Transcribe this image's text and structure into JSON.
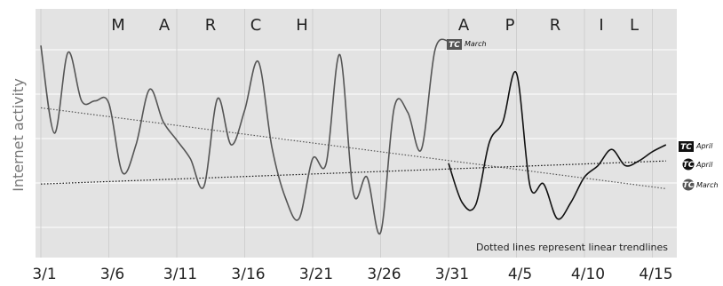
{
  "chart_data": {
    "type": "line",
    "title": "",
    "xlabel": "",
    "ylabel": "Internet activity",
    "x_tick_labels": [
      "3/1",
      "3/6",
      "3/11",
      "3/16",
      "3/21",
      "3/26",
      "3/31",
      "4/5",
      "4/10",
      "4/15"
    ],
    "month_labels": {
      "march": [
        "M",
        "A",
        "R",
        "C",
        "H"
      ],
      "april": [
        "A",
        "P",
        "R",
        "I",
        "L"
      ]
    },
    "note": "Dotted lines represent linear trendlines",
    "grid": true,
    "y_tick_labels_shown": false,
    "ylim": [
      0,
      100
    ],
    "series": [
      {
        "name": "March",
        "color": "#555555",
        "x": [
          "3/1",
          "3/2",
          "3/3",
          "3/4",
          "3/5",
          "3/6",
          "3/7",
          "3/8",
          "3/9",
          "3/10",
          "3/11",
          "3/12",
          "3/13",
          "3/14",
          "3/15",
          "3/16",
          "3/17",
          "3/18",
          "3/19",
          "3/20",
          "3/21",
          "3/22",
          "3/23",
          "3/24",
          "3/25",
          "3/26",
          "3/27",
          "3/28",
          "3/29",
          "3/30",
          "3/31"
        ],
        "y": [
          88,
          50,
          85,
          64,
          64,
          63,
          33,
          45,
          69,
          55,
          47,
          39,
          27,
          65,
          45,
          60,
          81,
          44,
          22,
          13,
          39,
          37,
          84,
          24,
          31,
          7,
          61,
          59,
          43,
          86,
          90
        ]
      },
      {
        "name": "April",
        "color": "#111111",
        "x": [
          "3/31",
          "4/1",
          "4/2",
          "4/3",
          "4/4",
          "4/5",
          "4/6",
          "4/7",
          "4/8",
          "4/9",
          "4/10",
          "4/11",
          "4/12",
          "4/13",
          "4/14",
          "4/15",
          "4/16"
        ],
        "y": [
          37,
          20,
          19,
          46,
          55,
          76,
          27,
          28,
          13,
          20,
          31,
          36,
          43,
          36,
          38,
          42,
          45
        ]
      }
    ],
    "trendlines": [
      {
        "series": "March",
        "label": "March",
        "badge": "TC",
        "style": "dotted",
        "color": "#555555",
        "start": [
          0,
          61
        ],
        "end": [
          46,
          26
        ]
      },
      {
        "series": "April",
        "label": "April",
        "badge": "TC",
        "style": "dotted",
        "color": "#111111",
        "start": [
          0,
          28
        ],
        "end": [
          46,
          38
        ]
      }
    ]
  }
}
